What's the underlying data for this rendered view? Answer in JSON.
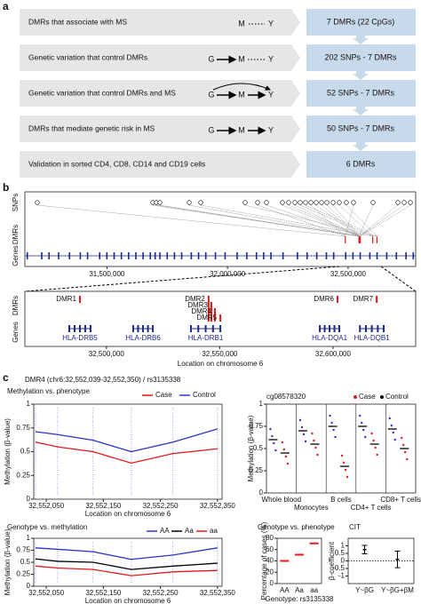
{
  "panel_a": {
    "label": "a",
    "rows": [
      {
        "text": "DMRs that associate with MS",
        "nodes": [
          "M",
          "Y"
        ],
        "result": "7 DMRs (22 CpGs)"
      },
      {
        "text": "Genetic variation that control DMRs",
        "nodes": [
          "G",
          "M",
          "Y"
        ],
        "result": "202 SNPs - 7 DMRs"
      },
      {
        "text": "Genetic variation that control DMRs and MS",
        "nodes": [
          "G",
          "M",
          "Y"
        ],
        "result": "52 SNPs - 7 DMRs"
      },
      {
        "text": "DMRs that mediate genetic risk in MS",
        "nodes": [
          "G",
          "M",
          "Y"
        ],
        "result": "50 SNPs - 7 DMRs"
      },
      {
        "text": "Validation in sorted CD4, CD8, CD14 and CD19 cells",
        "nodes": [],
        "result": "6 DMRs"
      }
    ]
  },
  "panel_b": {
    "label": "b",
    "overview": {
      "tracks": [
        "SNPs",
        "DMRs",
        "Genes"
      ],
      "xlim": [
        31160000,
        32780000
      ],
      "xticks": [
        {
          "value": 31500000,
          "label": "31,500,000"
        },
        {
          "value": 32000000,
          "label": "32,000,000"
        },
        {
          "value": 32500000,
          "label": "32,500,000"
        }
      ],
      "snp_positions": [
        31211500,
        31690200,
        31704900,
        31719700,
        31841200,
        31889000,
        32073100,
        32124700,
        32161500,
        32227800,
        32253500,
        32279300,
        32301400,
        32323500,
        32345600,
        32367700,
        32389800,
        32411900,
        32437700,
        32463400,
        32492800,
        32522300,
        32603300,
        32706400,
        32732200,
        32758000
      ],
      "gene_positions": [
        31170000,
        31230000,
        31260000,
        31300000,
        31345000,
        31390000,
        31420000,
        31470000,
        31500000,
        31530000,
        31560000,
        31590000,
        31620000,
        31650000,
        31680000,
        31700000,
        31720000,
        31750000,
        31780000,
        31810000,
        31850000,
        31880000,
        31910000,
        31950000,
        31990000,
        32040000,
        32080000,
        32120000,
        32150000,
        32180000,
        32230000,
        32290000,
        32330000,
        32370000,
        32410000,
        32440000,
        32490000,
        32520000,
        32550000,
        32590000,
        32620000,
        32660000,
        32700000,
        32740000,
        32770000
      ]
    },
    "zoom": {
      "tracks": [
        "DMRs",
        "Genes"
      ],
      "xlim": [
        32464000,
        32636500
      ],
      "xticks": [
        {
          "value": 32500000,
          "label": "32,500,000"
        },
        {
          "value": 32550000,
          "label": "32,550,000"
        },
        {
          "value": 32600000,
          "label": "32,600,000"
        }
      ],
      "x_label": "Location on chromosome 6",
      "dmrs": [
        {
          "name": "DMR1",
          "position": 32488300
        },
        {
          "name": "DMR2",
          "position": 32545100
        },
        {
          "name": "DMR3",
          "position": 32546300
        },
        {
          "name": "DMR4",
          "position": 32547900
        },
        {
          "name": "DMR5",
          "position": 32550300
        },
        {
          "name": "DMR6",
          "position": 32602000
        },
        {
          "name": "DMR7",
          "position": 32619300
        }
      ],
      "genes": [
        {
          "name": "HLA-DRB5",
          "start": 32483600,
          "end": 32493000
        },
        {
          "name": "HLA-DRB6",
          "start": 32511800,
          "end": 32520500
        },
        {
          "name": "HLA-DRB1",
          "start": 32537300,
          "end": 32550300
        },
        {
          "name": "HLA-DQA1",
          "start": 32594200,
          "end": 32602800
        },
        {
          "name": "HLA-DQB1",
          "start": 32611900,
          "end": 32622400
        }
      ]
    }
  },
  "panel_c": {
    "label": "c",
    "title": "DMR4 (chr6:32,552,039-32,552,350) / rs3135338",
    "methylation_phenotype": {
      "type": "line",
      "title": "Methylation vs. phenotype",
      "y_label": "Methylation (β-value)",
      "x_label": "Location on chromosome 6",
      "x": [
        32552031,
        32552070,
        32552132,
        32552199,
        32552272,
        32552350
      ],
      "xlim": [
        32552028,
        32552358
      ],
      "xticks": [
        {
          "value": 32552050,
          "label": "32,552,050"
        },
        {
          "value": 32552150,
          "label": "32,552,150"
        },
        {
          "value": 32552250,
          "label": "32,552,250"
        },
        {
          "value": 32552350,
          "label": "32,552,350"
        }
      ],
      "ylim": [
        0,
        1
      ],
      "yticks": [
        0,
        0.25,
        0.5,
        0.75,
        1
      ],
      "series": [
        {
          "name": "Case",
          "color": "#e41a1c",
          "values": [
            0.6,
            0.55,
            0.5,
            0.38,
            0.48,
            0.53
          ]
        },
        {
          "name": "Control",
          "color": "#2a35c9",
          "values": [
            0.71,
            0.68,
            0.62,
            0.5,
            0.6,
            0.74
          ]
        }
      ]
    },
    "cell_types": {
      "type": "strip",
      "title": "cg08578320",
      "y_label": "Methylation (β-value)",
      "categories": [
        "Whole blood",
        "Monocytes",
        "B cells",
        "CD4+ T cells",
        "CD8+ T cells"
      ],
      "ylim": [
        0,
        1
      ],
      "yticks": [
        0,
        0.25,
        0.5,
        0.75,
        1
      ],
      "series": [
        {
          "name": "Case",
          "color": "#e41a1c",
          "values": [
            0.45,
            0.55,
            0.3,
            0.55,
            0.5
          ]
        },
        {
          "name": "Control",
          "color": "#000000",
          "values": [
            0.6,
            0.7,
            0.75,
            0.75,
            0.72
          ]
        }
      ]
    },
    "genotype_methylation": {
      "type": "line",
      "title": "Genotype vs. methylation",
      "y_label": "Methylation (β-value)",
      "x_label": "Location on chromosome 6",
      "x": [
        32552031,
        32552070,
        32552132,
        32552199,
        32552272,
        32552350
      ],
      "xlim": [
        32552028,
        32552358
      ],
      "xticks": [
        {
          "value": 32552050,
          "label": "32,552,050"
        },
        {
          "value": 32552150,
          "label": "32,552,150"
        },
        {
          "value": 32552250,
          "label": "32,552,250"
        },
        {
          "value": 32552350,
          "label": "32,552,350"
        }
      ],
      "ylim": [
        0,
        1
      ],
      "yticks": [
        0,
        0.25,
        0.5,
        0.75,
        1
      ],
      "series": [
        {
          "name": "AA",
          "color": "#2a35c9",
          "values": [
            0.8,
            0.77,
            0.72,
            0.56,
            0.65,
            0.8
          ]
        },
        {
          "name": "Aa",
          "color": "#000000",
          "values": [
            0.57,
            0.52,
            0.5,
            0.35,
            0.42,
            0.48
          ]
        },
        {
          "name": "aa",
          "color": "#e41a1c",
          "values": [
            0.42,
            0.38,
            0.35,
            0.22,
            0.3,
            0.33
          ]
        }
      ]
    },
    "genotype_phenotype": {
      "type": "point",
      "title": "Genotype vs. phenotype",
      "y_label": "Percentage of cases (%)",
      "x_label": "Genotype: rs3135338",
      "categories": [
        "AA",
        "Aa",
        "aa"
      ],
      "values": [
        40,
        51,
        71
      ],
      "color": "#e41a1c",
      "ylim": [
        0,
        80
      ],
      "yticks": [
        0,
        20,
        40,
        60,
        80
      ]
    },
    "cit": {
      "type": "errorbar",
      "title": "CIT",
      "y_label": "β-coefficient",
      "categories": [
        "Y~βG",
        "Y~βG+βM"
      ],
      "values": [
        0.75,
        0.1
      ],
      "errors": [
        0.28,
        0.55
      ],
      "ylim": [
        -1.5,
        1.5
      ],
      "yticks": [
        -1,
        -0.5,
        0,
        0.5,
        1
      ]
    }
  }
}
